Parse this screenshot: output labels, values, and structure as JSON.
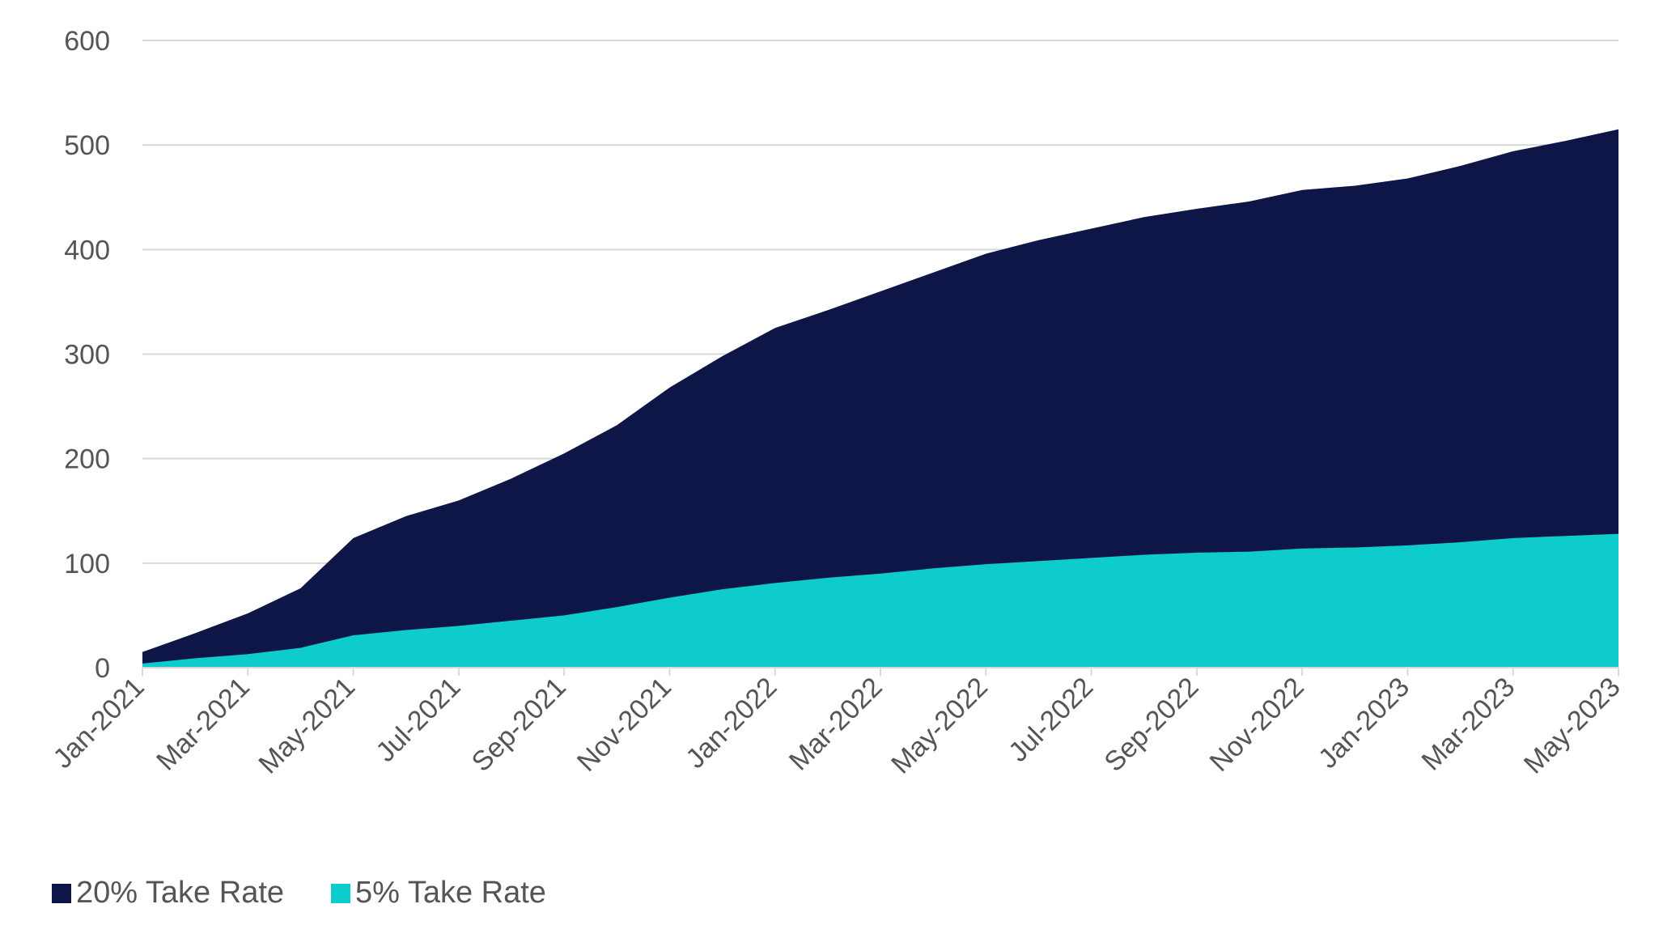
{
  "chart_data": {
    "type": "area",
    "stacked": true,
    "title": "",
    "xlabel": "",
    "ylabel": "",
    "ylim": [
      0,
      600
    ],
    "yticks": [
      0,
      100,
      200,
      300,
      400,
      500,
      600
    ],
    "grid": true,
    "legend_position": "bottom-left",
    "x": [
      "Jan-2021",
      "Feb-2021",
      "Mar-2021",
      "Apr-2021",
      "May-2021",
      "Jun-2021",
      "Jul-2021",
      "Aug-2021",
      "Sep-2021",
      "Oct-2021",
      "Nov-2021",
      "Dec-2021",
      "Jan-2022",
      "Feb-2022",
      "Mar-2022",
      "Apr-2022",
      "May-2022",
      "Jun-2022",
      "Jul-2022",
      "Aug-2022",
      "Sep-2022",
      "Oct-2022",
      "Nov-2022",
      "Dec-2022",
      "Jan-2023",
      "Feb-2023",
      "Mar-2023",
      "Apr-2023",
      "May-2023"
    ],
    "xtick_labels": [
      "Jan-2021",
      "Mar-2021",
      "May-2021",
      "Jul-2021",
      "Sep-2021",
      "Nov-2021",
      "Jan-2022",
      "Mar-2022",
      "May-2022",
      "Jul-2022",
      "Sep-2022",
      "Nov-2022",
      "Jan-2023",
      "Mar-2023",
      "May-2023"
    ],
    "series": [
      {
        "name": "20% Take Rate",
        "color": "#0e1647",
        "values": [
          15,
          33,
          52,
          76,
          124,
          145,
          160,
          181,
          205,
          232,
          268,
          298,
          325,
          342,
          360,
          378,
          396,
          409,
          420,
          431,
          439,
          446,
          457,
          461,
          468,
          480,
          494,
          504,
          515
        ]
      },
      {
        "name": "5% Take Rate",
        "color": "#0ecbcc",
        "values": [
          4,
          9,
          13,
          19,
          31,
          36,
          40,
          45,
          50,
          58,
          67,
          75,
          81,
          86,
          90,
          95,
          99,
          102,
          105,
          108,
          110,
          111,
          114,
          115,
          117,
          120,
          124,
          126,
          128
        ]
      }
    ]
  }
}
